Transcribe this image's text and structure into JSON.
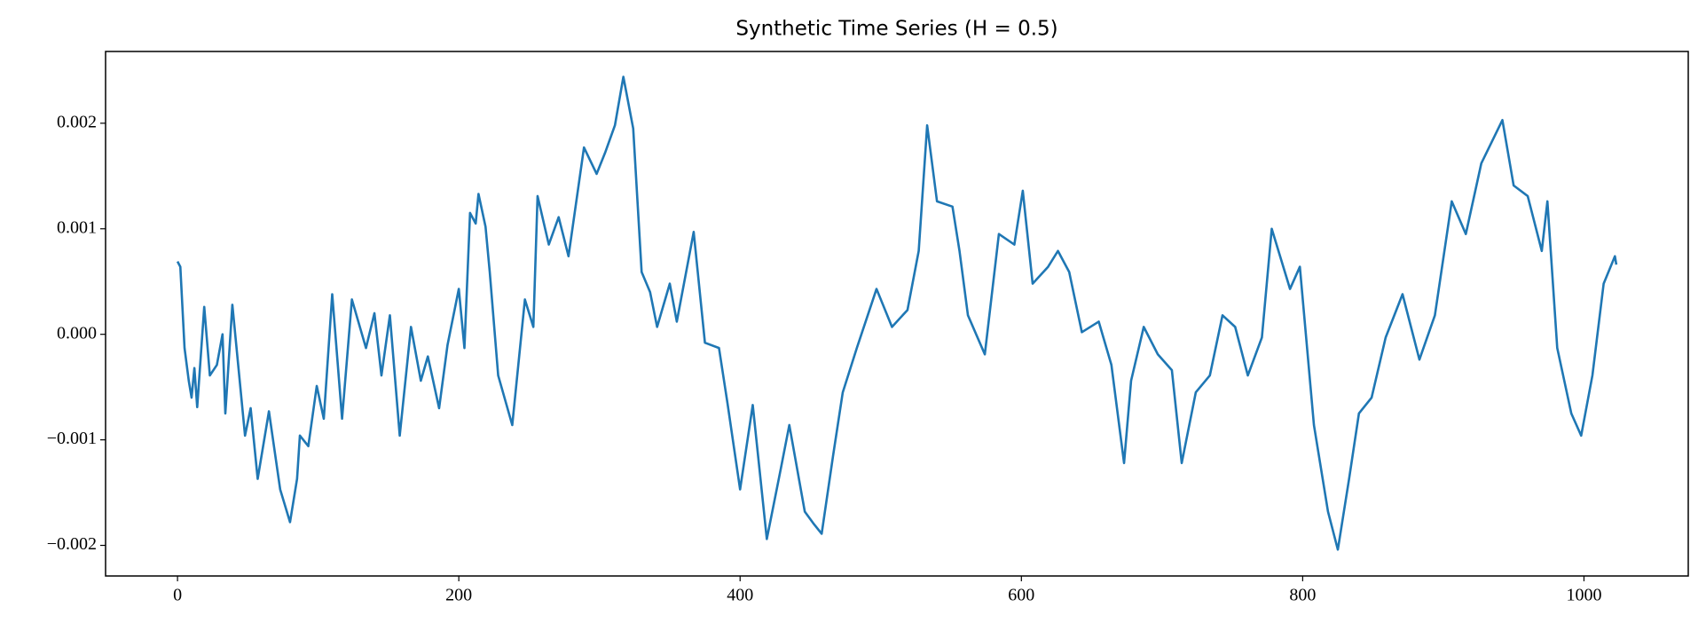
{
  "chart_data": {
    "type": "line",
    "title": "Synthetic Time Series (H = 0.5)",
    "color": "#1f77b4",
    "x": [
      0,
      2,
      5,
      8,
      10,
      12,
      14,
      19,
      23,
      28,
      32,
      34,
      39,
      48,
      52,
      57,
      65,
      73,
      80,
      85,
      87,
      93,
      99,
      104,
      110,
      117,
      124,
      134,
      140,
      145,
      151,
      158,
      166,
      173,
      178,
      186,
      192,
      200,
      204,
      208,
      212,
      214,
      219,
      222,
      228,
      238,
      247,
      253,
      256,
      264,
      271,
      278,
      289,
      298,
      304,
      311,
      317,
      324,
      330,
      336,
      341,
      350,
      355,
      367,
      375,
      385,
      391,
      400,
      409,
      419,
      429,
      435,
      446,
      452,
      458,
      466,
      473,
      483,
      497,
      508,
      519,
      527,
      533,
      540,
      551,
      556,
      562,
      574,
      584,
      595,
      601,
      608,
      619,
      626,
      634,
      643,
      655,
      664,
      673,
      678,
      687,
      697,
      707,
      714,
      724,
      734,
      743,
      752,
      761,
      771,
      778,
      791,
      798,
      808,
      818,
      825,
      833,
      840,
      849,
      859,
      871,
      883,
      894,
      906,
      916,
      927,
      942,
      950,
      960,
      970,
      974,
      981,
      991,
      998,
      1006,
      1014,
      1022,
      1023
    ],
    "values": [
      0.00069,
      0.00064,
      -0.00013,
      -0.00044,
      -0.0006,
      -0.00032,
      -0.00069,
      0.00026,
      -0.00039,
      -0.00029,
      0.0,
      -0.00075,
      0.00028,
      -0.00096,
      -0.0007,
      -0.00137,
      -0.00073,
      -0.00147,
      -0.00178,
      -0.00137,
      -0.00096,
      -0.00106,
      -0.00049,
      -0.0008,
      0.00038,
      -0.0008,
      0.00033,
      -0.00013,
      0.0002,
      -0.00039,
      0.00018,
      -0.00096,
      7e-05,
      -0.00044,
      -0.00021,
      -0.0007,
      -0.0001,
      0.00043,
      -0.00013,
      0.00115,
      0.00105,
      0.00133,
      0.00102,
      0.00059,
      -0.00039,
      -0.00086,
      0.00033,
      7e-05,
      0.00131,
      0.00085,
      0.00111,
      0.00074,
      0.00177,
      0.00152,
      0.00172,
      0.00198,
      0.00244,
      0.00195,
      0.00059,
      0.0004,
      7e-05,
      0.00048,
      0.00012,
      0.00097,
      -8e-05,
      -0.00013,
      -0.00065,
      -0.00147,
      -0.00067,
      -0.00194,
      -0.00127,
      -0.00086,
      -0.00168,
      -0.00179,
      -0.00189,
      -0.00116,
      -0.00055,
      -0.00013,
      0.00043,
      7e-05,
      0.00023,
      0.00079,
      0.00198,
      0.00126,
      0.00121,
      0.00079,
      0.00018,
      -0.00019,
      0.00095,
      0.00085,
      0.00136,
      0.00048,
      0.00064,
      0.00079,
      0.00059,
      2e-05,
      0.00012,
      -0.00029,
      -0.00122,
      -0.00044,
      7e-05,
      -0.00019,
      -0.00034,
      -0.00122,
      -0.00055,
      -0.00039,
      0.00018,
      7e-05,
      -0.00039,
      -3e-05,
      0.001,
      0.00043,
      0.00064,
      -0.00086,
      -0.00168,
      -0.00204,
      -0.00137,
      -0.00075,
      -0.0006,
      -3e-05,
      0.00038,
      -0.00024,
      0.00018,
      0.00126,
      0.00095,
      0.00162,
      0.00203,
      0.00141,
      0.00131,
      0.00079,
      0.00126,
      -0.00013,
      -0.00075,
      -0.00096,
      -0.00039,
      0.00048,
      0.00074,
      0.00066
    ],
    "xlim": [
      -51.15,
      1074.15
    ],
    "ylim": [
      -0.00229,
      0.00268
    ],
    "xticks": [
      0,
      200,
      400,
      600,
      800,
      1000
    ],
    "yticks": [
      {
        "value": -0.002,
        "label": "−0.002"
      },
      {
        "value": -0.001,
        "label": "−0.001"
      },
      {
        "value": 0,
        "label": "0.000"
      },
      0.001,
      0.002
    ]
  }
}
